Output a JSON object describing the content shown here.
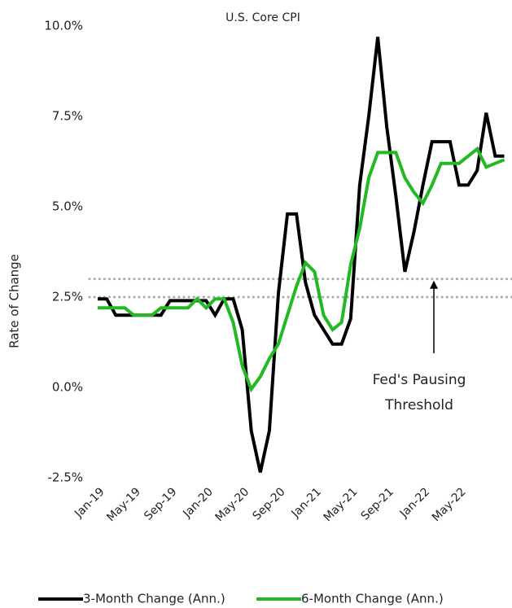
{
  "chart_data": {
    "type": "line",
    "title": "U.S. Core CPI",
    "y_label": "Rate of Change",
    "categories": [
      "Jan-19",
      null,
      null,
      null,
      "May-19",
      null,
      null,
      null,
      "Sep-19",
      null,
      null,
      null,
      "Jan-20",
      null,
      null,
      null,
      "May-20",
      null,
      null,
      null,
      "Sep-20",
      null,
      null,
      null,
      "Jan-21",
      null,
      null,
      null,
      "May-21",
      null,
      null,
      null,
      "Sep-21",
      null,
      null,
      null,
      "Jan-22",
      null,
      null,
      null,
      "May-22",
      null,
      null,
      null,
      null,
      null
    ],
    "series": [
      {
        "name": "3-Month Change (Ann.)",
        "color": "#000000",
        "values": [
          2.45,
          2.45,
          2.0,
          2.0,
          2.0,
          2.0,
          2.0,
          2.0,
          2.4,
          2.4,
          2.4,
          2.4,
          2.4,
          2.0,
          2.45,
          2.45,
          1.6,
          -1.2,
          -2.35,
          -1.2,
          2.6,
          4.8,
          4.8,
          2.9,
          2.0,
          1.6,
          1.2,
          1.2,
          1.9,
          5.6,
          7.5,
          9.7,
          7.2,
          5.3,
          3.2,
          4.3,
          5.6,
          6.8,
          6.8,
          6.8,
          5.6,
          5.6,
          6.0,
          7.6,
          6.4,
          6.4
        ]
      },
      {
        "name": "6-Month Change (Ann.)",
        "color": "#22b922",
        "values": [
          2.2,
          2.2,
          2.2,
          2.2,
          2.0,
          2.0,
          2.0,
          2.2,
          2.2,
          2.2,
          2.2,
          2.45,
          2.2,
          2.45,
          2.45,
          1.8,
          0.6,
          -0.05,
          0.3,
          0.8,
          1.2,
          2.0,
          2.8,
          3.45,
          3.2,
          2.0,
          1.6,
          1.8,
          3.4,
          4.4,
          5.8,
          6.5,
          6.5,
          6.5,
          5.8,
          5.4,
          5.1,
          5.6,
          6.2,
          6.2,
          6.2,
          6.4,
          6.6,
          6.1,
          6.2,
          6.3
        ]
      }
    ],
    "ylim": [
      -2.5,
      10
    ],
    "yticks": [
      {
        "value": -2.5,
        "label": "-2.5%"
      },
      {
        "value": 0,
        "label": "0.0%"
      },
      {
        "value": 2.5,
        "label": "2.5%"
      },
      {
        "value": 5,
        "label": "5.0%"
      },
      {
        "value": 7.5,
        "label": "7.5%"
      },
      {
        "value": 10,
        "label": "10.0%"
      }
    ],
    "reference_lines": [
      2.5,
      3.0
    ],
    "annotation": [
      "Fed's Pausing",
      "Threshold"
    ],
    "annotation_target": 3.0,
    "grid": false,
    "legend": "bottom"
  }
}
